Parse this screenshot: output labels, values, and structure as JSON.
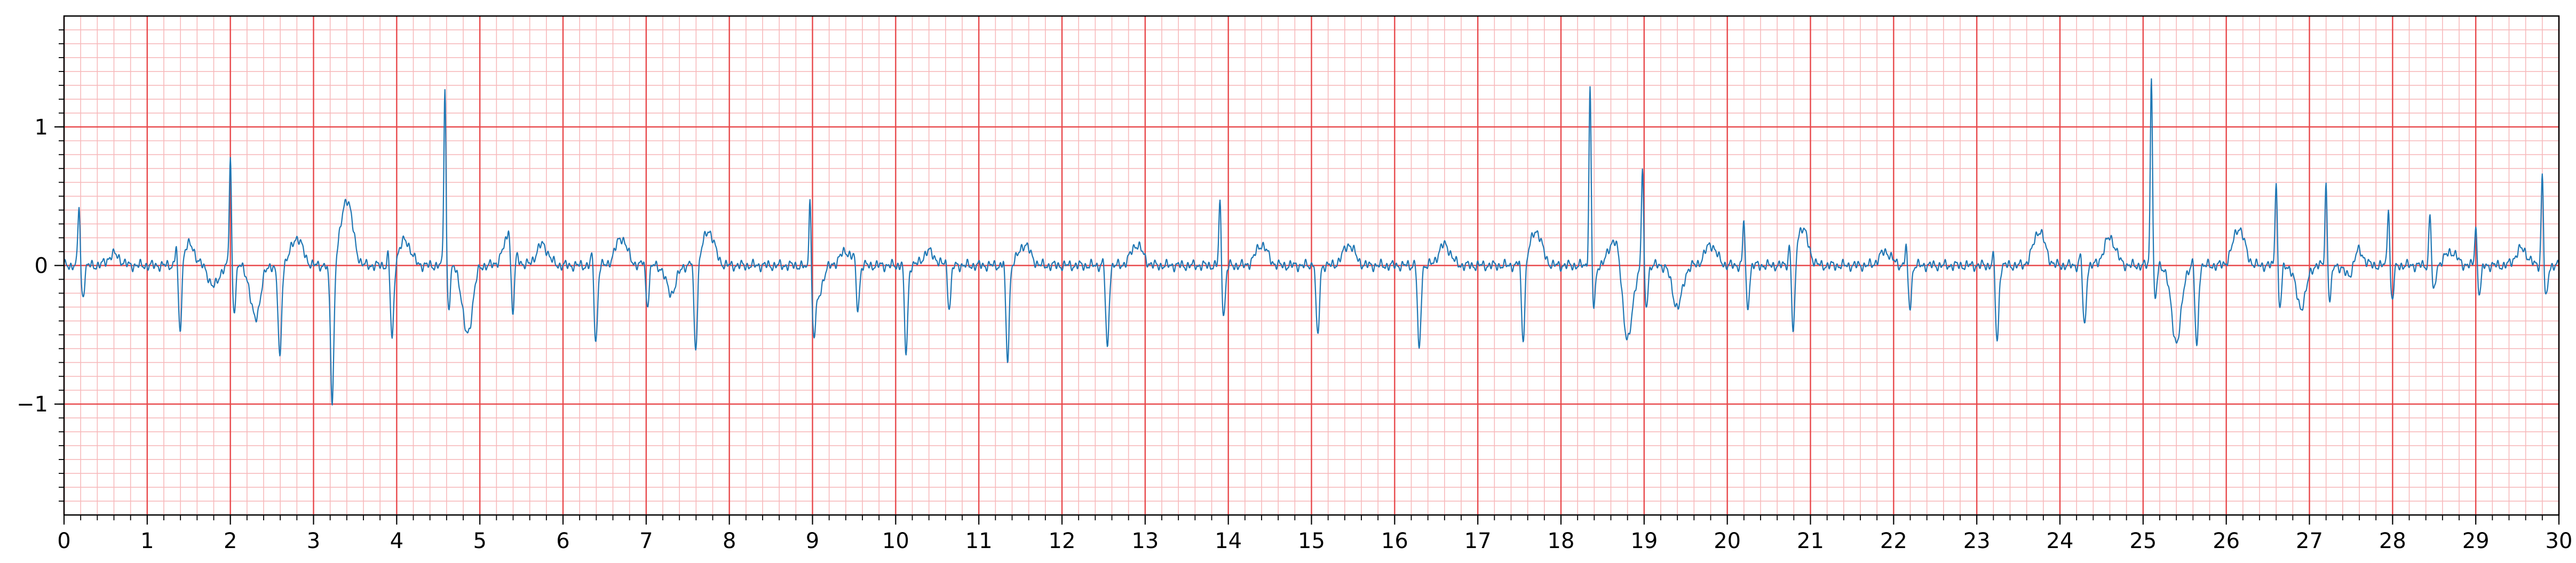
{
  "chart_data": {
    "type": "line",
    "title": "",
    "xlabel": "",
    "ylabel": "",
    "xlim": [
      0,
      30
    ],
    "ylim": [
      -1.8,
      1.8
    ],
    "x_ticks": [
      0,
      1,
      2,
      3,
      4,
      5,
      6,
      7,
      8,
      9,
      10,
      11,
      12,
      13,
      14,
      15,
      16,
      17,
      18,
      19,
      20,
      21,
      22,
      23,
      24,
      25,
      26,
      27,
      28,
      29,
      30
    ],
    "x_tick_labels": [
      "0",
      "1",
      "2",
      "3",
      "4",
      "5",
      "6",
      "7",
      "8",
      "9",
      "10",
      "11",
      "12",
      "13",
      "14",
      "15",
      "16",
      "17",
      "18",
      "19",
      "20",
      "21",
      "22",
      "23",
      "24",
      "25",
      "26",
      "27",
      "28",
      "29",
      "30"
    ],
    "y_ticks": [
      -1,
      0,
      1
    ],
    "y_tick_labels": [
      "−1",
      "0",
      "1"
    ],
    "grid": true,
    "grid_major": {
      "x_step": 1,
      "y_step": 1,
      "color": "#e8474a"
    },
    "grid_minor": {
      "x_step": 0.2,
      "y_step": 0.1,
      "color": "#f7b9bb"
    },
    "line_color": "#1f77b4",
    "series": [
      {
        "name": "",
        "beats": [
          {
            "t": 0.18,
            "r": 0.45,
            "s": -0.22
          },
          {
            "t": 1.35,
            "r": 0.15,
            "s": -0.52
          },
          {
            "t": 2.0,
            "r": 0.8,
            "s": -0.32
          },
          {
            "t": 2.55,
            "r": -0.05,
            "s": -0.68
          },
          {
            "t": 3.18,
            "r": -0.05,
            "s": -1.0
          },
          {
            "t": 3.9,
            "r": 0.1,
            "s": -0.55
          },
          {
            "t": 4.58,
            "r": 1.3,
            "s": -0.3
          },
          {
            "t": 5.35,
            "r": 0.1,
            "s": -0.5
          },
          {
            "t": 6.35,
            "r": 0.1,
            "s": -0.55
          },
          {
            "t": 6.97,
            "r": 0.05,
            "s": -0.28
          },
          {
            "t": 7.55,
            "r": 0.05,
            "s": -0.62
          },
          {
            "t": 8.97,
            "r": 0.62,
            "s": -0.3
          },
          {
            "t": 9.5,
            "r": 0.05,
            "s": -0.32
          },
          {
            "t": 10.08,
            "r": 0.05,
            "s": -0.63
          },
          {
            "t": 10.6,
            "r": 0.05,
            "s": -0.3
          },
          {
            "t": 11.3,
            "r": 0.05,
            "s": -0.68
          },
          {
            "t": 12.5,
            "r": 0.05,
            "s": -0.6
          },
          {
            "t": 13.9,
            "r": 0.48,
            "s": -0.35
          },
          {
            "t": 15.03,
            "r": 0.05,
            "s": -0.52
          },
          {
            "t": 16.25,
            "r": 0.05,
            "s": -0.62
          },
          {
            "t": 17.5,
            "r": 0.05,
            "s": -0.55
          },
          {
            "t": 18.35,
            "r": 1.3,
            "s": -0.3
          },
          {
            "t": 18.98,
            "r": 0.73,
            "s": -0.3
          },
          {
            "t": 20.2,
            "r": 0.35,
            "s": -0.3
          },
          {
            "t": 20.75,
            "r": 0.15,
            "s": -0.57
          },
          {
            "t": 22.15,
            "r": 0.15,
            "s": -0.3
          },
          {
            "t": 23.2,
            "r": 0.1,
            "s": -0.55
          },
          {
            "t": 24.25,
            "r": 0.1,
            "s": -0.45
          },
          {
            "t": 25.1,
            "r": 1.4,
            "s": -0.25
          },
          {
            "t": 25.6,
            "r": 0.05,
            "s": -0.6
          },
          {
            "t": 26.6,
            "r": 0.65,
            "s": -0.3
          },
          {
            "t": 27.2,
            "r": 0.6,
            "s": -0.25
          },
          {
            "t": 27.95,
            "r": 0.45,
            "s": -0.25
          },
          {
            "t": 28.45,
            "r": 0.4,
            "s": -0.2
          },
          {
            "t": 29.0,
            "r": 0.3,
            "s": -0.2
          },
          {
            "t": 29.8,
            "r": 0.68,
            "s": -0.25
          }
        ],
        "waves": [
          {
            "t": 0.6,
            "a": 0.08
          },
          {
            "t": 1.5,
            "a": 0.15
          },
          {
            "t": 2.8,
            "a": 0.2
          },
          {
            "t": 3.4,
            "a": 0.48
          },
          {
            "t": 4.1,
            "a": 0.18
          },
          {
            "t": 5.35,
            "a": 0.2
          },
          {
            "t": 5.75,
            "a": 0.15
          },
          {
            "t": 6.7,
            "a": 0.2
          },
          {
            "t": 7.75,
            "a": 0.25
          },
          {
            "t": 9.4,
            "a": 0.1
          },
          {
            "t": 10.4,
            "a": 0.1
          },
          {
            "t": 11.55,
            "a": 0.15
          },
          {
            "t": 12.9,
            "a": 0.15
          },
          {
            "t": 14.4,
            "a": 0.15
          },
          {
            "t": 15.45,
            "a": 0.15
          },
          {
            "t": 16.6,
            "a": 0.15
          },
          {
            "t": 17.7,
            "a": 0.25
          },
          {
            "t": 18.65,
            "a": 0.2
          },
          {
            "t": 19.8,
            "a": 0.15
          },
          {
            "t": 20.9,
            "a": 0.27
          },
          {
            "t": 21.9,
            "a": 0.1
          },
          {
            "t": 23.75,
            "a": 0.25
          },
          {
            "t": 24.6,
            "a": 0.2
          },
          {
            "t": 26.15,
            "a": 0.27
          },
          {
            "t": 27.55,
            "a": 0.2
          },
          {
            "t": 28.7,
            "a": 0.1
          },
          {
            "t": 29.55,
            "a": 0.12
          }
        ],
        "dips": [
          {
            "t": 1.8,
            "a": -0.15
          },
          {
            "t": 2.3,
            "a": -0.38
          },
          {
            "t": 4.85,
            "a": -0.5
          },
          {
            "t": 7.3,
            "a": -0.2
          },
          {
            "t": 9.05,
            "a": -0.25
          },
          {
            "t": 18.8,
            "a": -0.55
          },
          {
            "t": 19.4,
            "a": -0.3
          },
          {
            "t": 25.4,
            "a": -0.55
          },
          {
            "t": 26.9,
            "a": -0.3
          },
          {
            "t": 27.5,
            "a": -0.2
          }
        ]
      }
    ]
  }
}
